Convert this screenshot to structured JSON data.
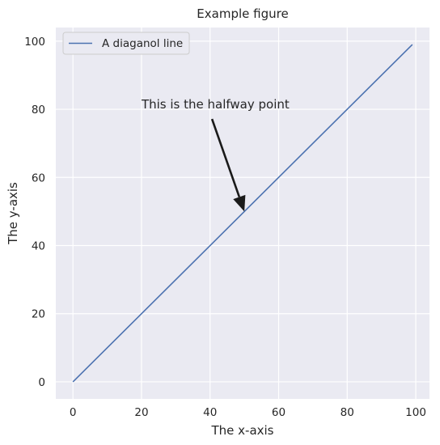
{
  "chart_data": {
    "type": "line",
    "title": "Example figure",
    "xlabel": "The x-axis",
    "ylabel": "The y-axis",
    "xlim": [
      -5,
      104
    ],
    "ylim": [
      -5,
      104
    ],
    "xticks": [
      0,
      20,
      40,
      60,
      80,
      100
    ],
    "yticks": [
      0,
      20,
      40,
      60,
      80,
      100
    ],
    "grid": true,
    "legend_position": "top-left",
    "series": [
      {
        "name": "A diaganol line",
        "color": "#4c72b0",
        "x": [
          0,
          99
        ],
        "y": [
          0,
          99
        ]
      }
    ],
    "annotations": [
      {
        "text": "This is the halfway point",
        "text_xy": [
          20,
          80
        ],
        "arrow_to": [
          50,
          50
        ],
        "color": "#1a1a1a"
      }
    ],
    "colors": {
      "plot_background": "#eaeaf2",
      "grid": "#ffffff",
      "line": "#4c72b0"
    }
  }
}
